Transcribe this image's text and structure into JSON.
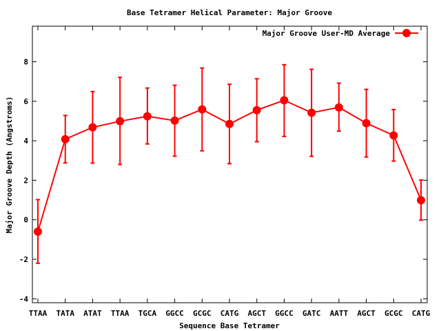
{
  "chart_data": {
    "type": "line",
    "title": "Base Tetramer Helical Parameter: Major Groove",
    "xlabel": "Sequence Base Tetramer",
    "ylabel": "Major Groove Depth (Angstroms)",
    "ylim": [
      -4.2,
      9.8
    ],
    "yticks": [
      -4,
      -2,
      0,
      2,
      4,
      6,
      8
    ],
    "grid": false,
    "legend_position": "top-right",
    "categories": [
      "TTAA",
      "TATA",
      "ATAT",
      "TTAA",
      "TGCA",
      "GGCC",
      "GCGC",
      "CATG",
      "AGCT",
      "GGCC",
      "GATC",
      "AATT",
      "AGCT",
      "GCGC",
      "CATG"
    ],
    "series": [
      {
        "name": "Major Groove User-MD Average",
        "color": "#ff0000",
        "values": [
          -0.6,
          4.08,
          4.68,
          4.99,
          5.24,
          5.02,
          5.59,
          4.85,
          5.55,
          6.05,
          5.42,
          5.69,
          4.89,
          4.27,
          0.99
        ],
        "error_low": [
          -2.2,
          2.88,
          2.87,
          2.8,
          3.84,
          3.22,
          3.49,
          2.84,
          3.95,
          4.22,
          3.21,
          4.49,
          3.18,
          2.97,
          -0.02
        ],
        "error_high": [
          1.02,
          5.28,
          6.49,
          7.21,
          6.67,
          6.81,
          7.68,
          6.86,
          7.14,
          7.85,
          7.62,
          6.92,
          6.6,
          5.58,
          2.01
        ]
      }
    ]
  }
}
